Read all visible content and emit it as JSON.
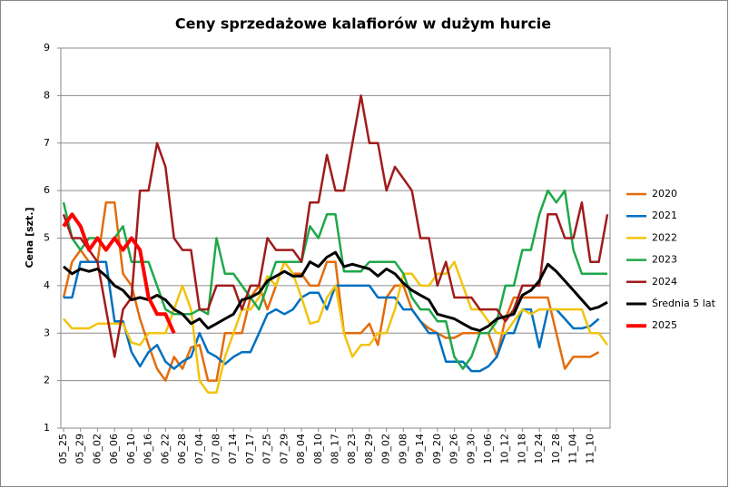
{
  "chart_data": {
    "type": "line",
    "title": "Ceny sprzedażowe kalafiorów w dużym hurcie",
    "y_label": "Cena [szt.]",
    "categories": [
      "05_25",
      null,
      "05_29",
      null,
      "06_02",
      null,
      "06_06",
      null,
      "06_10",
      null,
      "06_16",
      null,
      "06_22",
      null,
      "06_28",
      null,
      "07_04",
      null,
      "07_08",
      null,
      "07_14",
      null,
      "07_17",
      null,
      "07_25",
      null,
      "07_29",
      null,
      "08_04",
      null,
      "08_10",
      null,
      "08_17",
      null,
      "08_23",
      null,
      "08_29",
      null,
      "09_02",
      null,
      "09_08",
      null,
      "09_14",
      null,
      "09_20",
      null,
      "09_26",
      null,
      "09_30",
      null,
      "10_06",
      null,
      "10_12",
      null,
      "10_18",
      null,
      "10_24",
      null,
      "10_28",
      null,
      "11_04",
      null,
      "11_10",
      null,
      null
    ],
    "ylim": [
      1,
      9
    ],
    "yticks": [
      1,
      2,
      3,
      4,
      5,
      6,
      7,
      8,
      9
    ],
    "grid": true,
    "legend": "right",
    "series": [
      {
        "name": "2020",
        "color": "#e46c0a",
        "width": 2.5,
        "values": [
          3.75,
          4.5,
          4.75,
          4.5,
          4.5,
          5.75,
          5.75,
          4.25,
          4.0,
          3.3,
          2.75,
          2.25,
          2.0,
          2.5,
          2.25,
          2.7,
          2.75,
          2.0,
          2.0,
          3.0,
          3.0,
          3.0,
          3.75,
          4.0,
          3.5,
          4.0,
          4.5,
          4.25,
          4.25,
          4.0,
          4.0,
          4.5,
          4.5,
          3.0,
          3.0,
          3.0,
          3.2,
          2.75,
          3.75,
          4.0,
          4.0,
          3.5,
          3.25,
          3.1,
          3.0,
          2.9,
          2.9,
          3.0,
          3.0,
          3.0,
          3.0,
          2.5,
          3.3,
          3.75,
          3.75,
          3.75,
          3.75,
          3.75,
          3.0,
          2.25,
          2.5,
          2.5,
          2.5,
          2.6,
          null
        ]
      },
      {
        "name": "2021",
        "color": "#0070c0",
        "width": 2.5,
        "values": [
          3.75,
          3.75,
          4.5,
          4.5,
          4.5,
          4.5,
          3.25,
          3.25,
          2.6,
          2.3,
          2.6,
          2.75,
          2.4,
          2.25,
          2.4,
          2.5,
          3.0,
          2.6,
          2.5,
          2.35,
          2.5,
          2.6,
          2.6,
          3.0,
          3.4,
          3.5,
          3.4,
          3.5,
          3.75,
          3.85,
          3.85,
          3.5,
          4.0,
          4.0,
          4.0,
          4.0,
          4.0,
          3.75,
          3.75,
          3.75,
          3.5,
          3.5,
          3.25,
          3.0,
          3.0,
          2.4,
          2.4,
          2.4,
          2.2,
          2.2,
          2.3,
          2.5,
          3.0,
          3.0,
          3.5,
          3.5,
          2.7,
          3.5,
          3.5,
          3.3,
          3.1,
          3.1,
          3.15,
          3.3,
          null
        ]
      },
      {
        "name": "2022",
        "color": "#f2c40f",
        "width": 2.5,
        "values": [
          3.3,
          3.1,
          3.1,
          3.1,
          3.2,
          3.2,
          3.2,
          3.2,
          2.8,
          2.75,
          3.0,
          3.0,
          3.0,
          3.5,
          4.0,
          3.5,
          2.0,
          1.75,
          1.75,
          2.5,
          3.0,
          3.5,
          3.5,
          3.75,
          4.2,
          4.0,
          4.5,
          4.25,
          3.75,
          3.2,
          3.25,
          3.75,
          4.0,
          3.0,
          2.5,
          2.75,
          2.75,
          3.0,
          3.0,
          3.5,
          4.25,
          4.25,
          4.0,
          4.0,
          4.25,
          4.25,
          4.5,
          4.0,
          3.5,
          3.5,
          3.25,
          3.0,
          3.0,
          3.25,
          3.5,
          3.4,
          3.5,
          3.5,
          3.5,
          3.5,
          3.5,
          3.5,
          3.0,
          3.0,
          2.75
        ]
      },
      {
        "name": "2023",
        "color": "#1fa84a",
        "width": 2.5,
        "values": [
          5.75,
          5.0,
          4.75,
          5.0,
          5.0,
          4.75,
          5.0,
          5.25,
          4.5,
          4.5,
          4.5,
          4.0,
          3.5,
          3.4,
          3.4,
          3.4,
          3.5,
          3.4,
          5.0,
          4.25,
          4.25,
          4.0,
          3.75,
          3.5,
          4.0,
          4.5,
          4.5,
          4.5,
          4.5,
          5.25,
          5.0,
          5.5,
          5.5,
          4.3,
          4.3,
          4.3,
          4.5,
          4.5,
          4.5,
          4.5,
          4.25,
          3.75,
          3.5,
          3.5,
          3.25,
          3.25,
          2.5,
          2.25,
          2.5,
          3.0,
          3.0,
          3.25,
          4.0,
          4.0,
          4.75,
          4.75,
          5.5,
          6.0,
          5.75,
          6.0,
          4.75,
          4.25,
          4.25,
          4.25,
          4.25
        ]
      },
      {
        "name": "2024",
        "color": "#a01c1c",
        "width": 2.5,
        "values": [
          5.5,
          5.0,
          5.0,
          4.75,
          4.5,
          3.5,
          2.5,
          3.5,
          3.75,
          6.0,
          6.0,
          7.0,
          6.5,
          5.0,
          4.75,
          4.75,
          3.5,
          3.5,
          4.0,
          4.0,
          4.0,
          3.5,
          4.0,
          4.0,
          5.0,
          4.75,
          4.75,
          4.75,
          4.5,
          5.75,
          5.75,
          6.75,
          6.0,
          6.0,
          7.0,
          8.0,
          7.0,
          7.0,
          6.0,
          6.5,
          6.25,
          6.0,
          5.0,
          5.0,
          4.0,
          4.5,
          3.75,
          3.75,
          3.75,
          3.5,
          3.5,
          3.5,
          3.25,
          3.5,
          4.0,
          4.0,
          4.0,
          5.5,
          5.5,
          5.0,
          5.0,
          5.75,
          4.5,
          4.5,
          5.5
        ]
      },
      {
        "name": "Średnia 5 lat",
        "color": "#000000",
        "width": 3,
        "values": [
          4.4,
          4.25,
          4.35,
          4.3,
          4.35,
          4.2,
          4.0,
          3.9,
          3.7,
          3.75,
          3.7,
          3.8,
          3.7,
          3.5,
          3.4,
          3.2,
          3.3,
          3.1,
          3.2,
          3.3,
          3.4,
          3.7,
          3.75,
          3.85,
          4.1,
          4.2,
          4.3,
          4.2,
          4.2,
          4.5,
          4.4,
          4.6,
          4.7,
          4.4,
          4.45,
          4.4,
          4.35,
          4.2,
          4.35,
          4.25,
          4.05,
          3.9,
          3.8,
          3.7,
          3.4,
          3.35,
          3.3,
          3.2,
          3.1,
          3.05,
          3.15,
          3.3,
          3.35,
          3.4,
          3.8,
          3.9,
          4.1,
          4.45,
          4.3,
          4.1,
          3.9,
          3.7,
          3.5,
          3.55,
          3.65
        ]
      },
      {
        "name": "2025",
        "color": "#ff0000",
        "width": 4,
        "values": [
          5.25,
          5.5,
          5.25,
          4.75,
          5.0,
          4.75,
          5.0,
          4.75,
          5.0,
          4.75,
          3.75,
          3.4,
          3.4,
          3.0,
          null,
          null,
          null,
          null,
          null,
          null,
          null,
          null,
          null,
          null,
          null,
          null,
          null,
          null,
          null,
          null,
          null,
          null,
          null,
          null,
          null,
          null,
          null,
          null,
          null,
          null,
          null,
          null,
          null,
          null,
          null,
          null,
          null,
          null,
          null,
          null,
          null,
          null,
          null,
          null,
          null,
          null,
          null,
          null,
          null,
          null,
          null,
          null,
          null,
          null,
          null
        ]
      }
    ]
  }
}
